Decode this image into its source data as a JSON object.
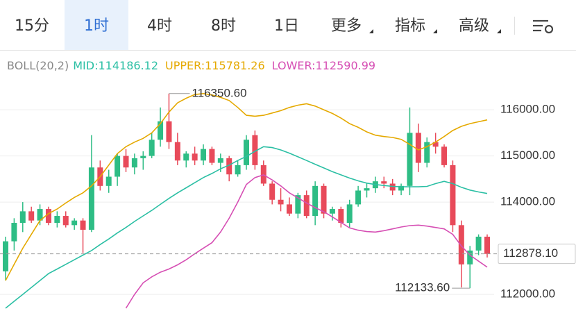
{
  "tabs": [
    "15分",
    "1时",
    "4时",
    "8时",
    "1日",
    "更多",
    "指标",
    "高级"
  ],
  "selected_tab": 1,
  "chart_data": {
    "type": "candlestick",
    "indicator": "BOLL(20,2)",
    "up_color": "#2ebd85",
    "down_color": "#e84a5a",
    "ylim": [
      111640,
      117250
    ],
    "yticks": [
      {
        "value": 112000,
        "label": "112000.00"
      },
      {
        "value": 114000,
        "label": "114000.00"
      },
      {
        "value": 115000,
        "label": "115000.00"
      },
      {
        "value": 116000,
        "label": "116000.00"
      }
    ],
    "grid": true,
    "open": [
      112500,
      113150,
      113550,
      113800,
      113600,
      113850,
      113550,
      113700,
      113500,
      113600,
      113400,
      114750,
      114350,
      114550,
      115000,
      114750,
      114950,
      115000,
      115350,
      115750,
      115300,
      114900,
      115050,
      114900,
      115150,
      114850,
      114950,
      114600,
      114800,
      115450,
      114800,
      114400,
      114050,
      113950,
      113750,
      114150,
      113700,
      114350,
      113750,
      113850,
      113550,
      113950,
      114250,
      114300,
      114450,
      114400,
      114250,
      114350,
      115500,
      114850,
      115300,
      115200,
      114800,
      113500,
      112650,
      112950,
      113250
    ],
    "high": [
      113250,
      113650,
      114000,
      113900,
      113950,
      113900,
      113800,
      113800,
      113650,
      113650,
      115450,
      114900,
      114700,
      115050,
      115150,
      115050,
      115100,
      115500,
      116050,
      116350.6,
      115500,
      115100,
      115200,
      115250,
      115200,
      115050,
      115000,
      114900,
      115450,
      115550,
      114900,
      114450,
      114300,
      114100,
      114200,
      114250,
      114450,
      114400,
      113900,
      113900,
      114050,
      114350,
      114400,
      114550,
      114550,
      114500,
      114400,
      116050,
      115700,
      115400,
      115500,
      115250,
      114900,
      113600,
      113050,
      113300,
      113300
    ],
    "low": [
      112300,
      112950,
      113350,
      113550,
      113500,
      113500,
      113450,
      113450,
      113400,
      112900,
      113350,
      114250,
      114200,
      114350,
      114650,
      114600,
      114700,
      114950,
      115200,
      115150,
      114800,
      114750,
      114800,
      114800,
      114800,
      114650,
      114450,
      114550,
      114700,
      114700,
      114350,
      113950,
      113800,
      113700,
      113650,
      113650,
      113500,
      113650,
      113600,
      113450,
      113450,
      113900,
      114100,
      114200,
      114300,
      114150,
      114150,
      114150,
      114650,
      114750,
      115050,
      114750,
      113350,
      112150,
      112133.6,
      112850,
      112800
    ],
    "close": [
      113150,
      113550,
      113800,
      113600,
      113850,
      113550,
      113700,
      113500,
      113600,
      113400,
      114750,
      114350,
      114550,
      115000,
      114750,
      114950,
      115000,
      115350,
      115750,
      115300,
      114900,
      115050,
      114900,
      115150,
      114850,
      114950,
      114600,
      114800,
      115350,
      114800,
      114400,
      114050,
      113950,
      113750,
      114150,
      113700,
      114350,
      113750,
      113850,
      113550,
      113950,
      114250,
      114300,
      114450,
      114400,
      114250,
      114350,
      115500,
      114850,
      115300,
      115200,
      114800,
      113500,
      112650,
      112950,
      113250,
      112878.1
    ],
    "bands": [
      {
        "name": "MID",
        "label": "MID:114186.12",
        "color": "#2bbfa4",
        "values": [
          111700,
          111850,
          112000,
          112150,
          112300,
          112450,
          112550,
          112650,
          112750,
          112850,
          112950,
          113080,
          113200,
          113330,
          113450,
          113580,
          113700,
          113820,
          113950,
          114080,
          114200,
          114310,
          114420,
          114530,
          114620,
          114720,
          114800,
          114900,
          114990,
          115100,
          115200,
          115180,
          115130,
          115060,
          114980,
          114900,
          114820,
          114740,
          114660,
          114590,
          114520,
          114460,
          114410,
          114380,
          114360,
          114340,
          114330,
          114330,
          114330,
          114340,
          114400,
          114450,
          114400,
          114320,
          114260,
          114220,
          114186.12
        ]
      },
      {
        "name": "UPPER",
        "label": "UPPER:115781.26",
        "color": "#e5a900",
        "values": [
          112300,
          112650,
          113000,
          113300,
          113600,
          113750,
          113850,
          113980,
          114100,
          114200,
          114350,
          114550,
          114800,
          115050,
          115200,
          115300,
          115380,
          115500,
          115700,
          115950,
          116150,
          116250,
          116330,
          116350,
          116320,
          116270,
          116200,
          116050,
          115880,
          115860,
          115880,
          115930,
          115980,
          116050,
          116100,
          116130,
          116080,
          116000,
          115920,
          115820,
          115700,
          115620,
          115520,
          115450,
          115420,
          115400,
          115360,
          115250,
          115130,
          115200,
          115300,
          115420,
          115550,
          115640,
          115700,
          115740,
          115781.26
        ]
      },
      {
        "name": "LOWER",
        "label": "LOWER:112590.99",
        "color": "#d64fb4",
        "values": [
          null,
          null,
          null,
          null,
          null,
          null,
          null,
          null,
          null,
          null,
          null,
          null,
          null,
          null,
          111700,
          112000,
          112250,
          112380,
          112480,
          112550,
          112640,
          112750,
          112880,
          113000,
          113120,
          113350,
          113650,
          114000,
          114380,
          114530,
          114590,
          114480,
          114350,
          114200,
          114090,
          113980,
          113880,
          113790,
          113680,
          113560,
          113440,
          113390,
          113360,
          113350,
          113380,
          113420,
          113460,
          113490,
          113500,
          113480,
          113450,
          113420,
          113300,
          113050,
          112850,
          112720,
          112590.99
        ]
      }
    ],
    "max_label": {
      "value": 116350.6,
      "label": "116350.60"
    },
    "min_label": {
      "value": 112133.6,
      "label": "112133.60"
    },
    "last_price": {
      "value": 112878.1,
      "label": "112878.10"
    }
  }
}
